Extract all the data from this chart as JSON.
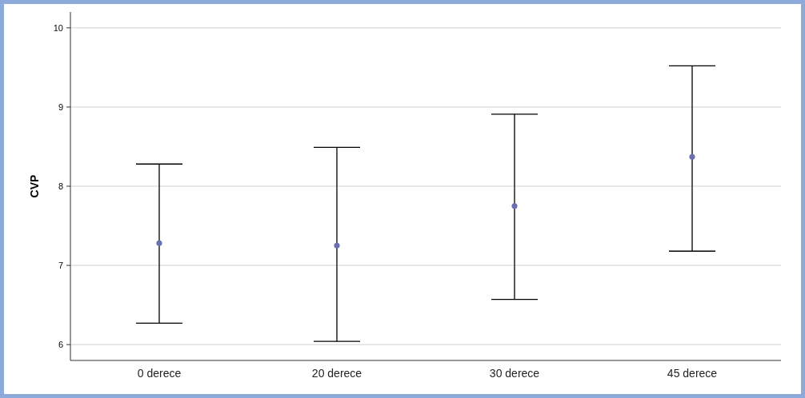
{
  "chart_data": {
    "type": "scatter",
    "ylabel": "CVP",
    "categories": [
      "0 derece",
      "20 derece",
      "30 derece",
      "45 derece"
    ],
    "series": [
      {
        "color": "#6a6fb3",
        "values": [
          7.28,
          7.25,
          7.75,
          8.37
        ],
        "errors": [
          [
            6.27,
            8.28
          ],
          [
            6.04,
            8.49
          ],
          [
            6.57,
            8.91
          ],
          [
            7.18,
            9.52
          ]
        ]
      }
    ],
    "ylim": [
      5.8,
      10.2
    ],
    "yticks": [
      6,
      7,
      8,
      9,
      10
    ],
    "grid": "y",
    "marker": "circle"
  }
}
